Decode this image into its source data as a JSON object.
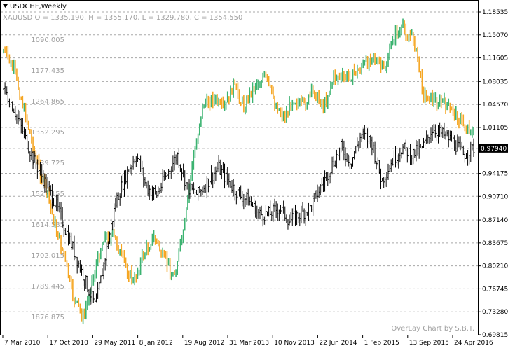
{
  "window": {
    "title": "USDCHF,Weekly",
    "overlay_info": "XAUUSD O = 1335.190, H = 1355.170, L = 1329.780, C = 1354.550",
    "watermark": "OverLay Chart by S.B.T."
  },
  "chart_data": {
    "type": "candlestick",
    "primary_series": {
      "name": "USDCHF",
      "timeframe": "Weekly",
      "current_price": "0.97940",
      "bar_color": "#000000",
      "y_axis": {
        "side": "right",
        "ticks": [
          "1.18535",
          "1.15070",
          "1.11605",
          "1.08035",
          "1.04570",
          "1.01105",
          "0.97940",
          "0.94175",
          "0.90710",
          "0.87140",
          "0.83675",
          "0.80210",
          "0.76745",
          "0.73280",
          "0.69815"
        ],
        "range": [
          0.69815,
          1.18535
        ]
      },
      "approx_closes": [
        1.07,
        1.04,
        1.0,
        0.96,
        0.93,
        0.9,
        0.86,
        0.82,
        0.78,
        0.74,
        0.82,
        0.9,
        0.94,
        0.97,
        0.92,
        0.91,
        0.94,
        0.97,
        0.92,
        0.91,
        0.93,
        0.95,
        0.93,
        0.91,
        0.9,
        0.88,
        0.88,
        0.89,
        0.87,
        0.88,
        0.89,
        0.92,
        0.95,
        0.98,
        0.96,
        1.0,
        0.99,
        0.93,
        0.96,
        0.98,
        0.97,
        0.98,
        1.01,
        1.0,
        0.99,
        0.97,
        0.98
      ]
    },
    "overlay_series": {
      "name": "XAUUSD",
      "up_color": "#f5a623",
      "down_color": "#3cb371",
      "inner_axis": {
        "ticks": [
          "1090.005",
          "1177.435",
          "1264.865",
          "1352.295",
          "1439.725",
          "1527.155",
          "1614.585",
          "1702.015",
          "1789.445",
          "1876.875"
        ],
        "inverted": true
      },
      "approx_closes": [
        1120,
        1175,
        1280,
        1400,
        1500,
        1600,
        1700,
        1830,
        1880,
        1760,
        1650,
        1650,
        1720,
        1780,
        1700,
        1650,
        1710,
        1760,
        1640,
        1420,
        1270,
        1260,
        1290,
        1220,
        1280,
        1230,
        1190,
        1260,
        1310,
        1260,
        1280,
        1240,
        1280,
        1200,
        1200,
        1190,
        1160,
        1140,
        1180,
        1080,
        1060,
        1090,
        1250,
        1260,
        1270,
        1300,
        1330,
        1354
      ]
    },
    "x_axis": {
      "labels": [
        "7 Mar 2010",
        "17 Oct 2010",
        "29 May 2011",
        "8 Jan 2012",
        "19 Aug 2012",
        "31 Mar 2013",
        "10 Nov 2013",
        "22 Jun 2014",
        "1 Feb 2015",
        "13 Sep 2015",
        "24 Apr 2016"
      ]
    },
    "grid": true
  }
}
